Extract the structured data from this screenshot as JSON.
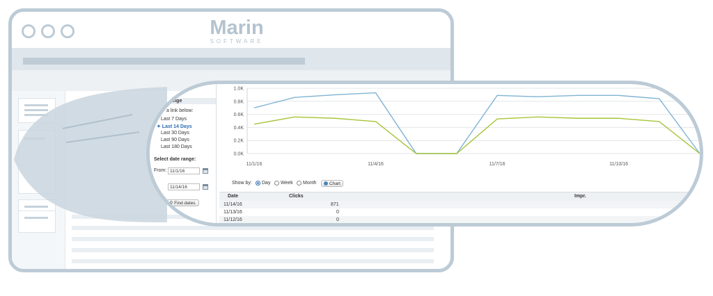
{
  "logo": {
    "word": "Marin",
    "sub": "SOFTWARE"
  },
  "date_panel": {
    "header_fragment": "ange",
    "intro": "a link below:",
    "presets": [
      "Last 7 Days",
      "Last 14 Days",
      "Last 30 Days",
      "Last 90 Days",
      "Last 180 Days"
    ],
    "selected_index": 1,
    "range_label": "Select date range:",
    "from_label": "From:",
    "from_value": "11/1/16",
    "to_value": "11/14/16",
    "find_label": "Find dates"
  },
  "chart_data": {
    "type": "line",
    "x": [
      "11/1/16",
      "11/2/16",
      "11/3/16",
      "11/4/16",
      "11/5/16",
      "11/6/16",
      "11/7/16",
      "11/8/16",
      "11/9/16",
      "11/10/16",
      "11/11/16",
      "11/12/16"
    ],
    "xtick_labels": [
      "11/1/16",
      "11/4/16",
      "11/7/16",
      "11/10/16"
    ],
    "ytick_labels": [
      "0.0K",
      "0.2K",
      "0.4K",
      "0.6K",
      "0.8K",
      "1.0K"
    ],
    "ylim": [
      0,
      1000
    ],
    "grid": true,
    "series": [
      {
        "color": "#7fb3d3",
        "values": [
          700,
          860,
          900,
          930,
          0,
          0,
          890,
          870,
          890,
          890,
          840,
          0
        ]
      },
      {
        "color": "#a6c43a",
        "values": [
          450,
          560,
          540,
          490,
          0,
          0,
          530,
          560,
          540,
          540,
          490,
          0
        ]
      }
    ]
  },
  "show_by": {
    "label": "Show by:",
    "options": [
      "Day",
      "Week",
      "Month"
    ],
    "selected": "Day",
    "chart_button": "Chart"
  },
  "table": {
    "columns": [
      "Date",
      "Clicks",
      "Impr."
    ],
    "rows": [
      {
        "date": "11/14/16",
        "clicks": "871"
      },
      {
        "date": "11/13/16",
        "clicks": "0"
      },
      {
        "date": "11/12/16",
        "clicks": "0"
      }
    ]
  },
  "colors": {
    "frame": "#bccbd6",
    "accent": "#2b6cb0"
  }
}
